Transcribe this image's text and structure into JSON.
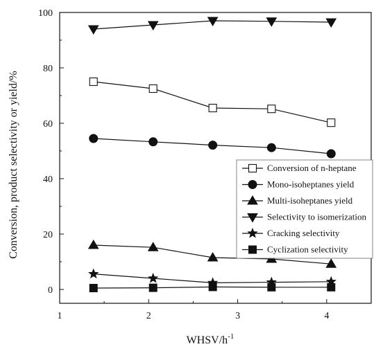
{
  "chart_data": {
    "type": "line",
    "xlabel": "WHSV/h",
    "xlabel_superscript": "-1",
    "ylabel": "Conversion, product selectivity or yield/%",
    "xlim": [
      1,
      4.5
    ],
    "ylim": [
      -5,
      100
    ],
    "x_ticks": [
      1,
      2,
      3,
      4
    ],
    "x_tick_labels": [
      "1",
      "2",
      "3",
      "4"
    ],
    "y_ticks": [
      0,
      20,
      40,
      60,
      80,
      100
    ],
    "y_tick_labels": [
      "0",
      "20",
      "40",
      "60",
      "80",
      "100"
    ],
    "grid": false,
    "legend_position": "right-middle",
    "x": [
      1.38,
      2.05,
      2.72,
      3.38,
      4.05
    ],
    "series": [
      {
        "name": "Conversion of n-heptane",
        "marker": "square-open",
        "values": [
          75.0,
          72.5,
          65.5,
          65.2,
          60.2
        ]
      },
      {
        "name": "Mono-isoheptanes yield",
        "marker": "circle-filled",
        "values": [
          54.5,
          53.3,
          52.1,
          51.2,
          49.0
        ]
      },
      {
        "name": "Multi-isoheptanes yield",
        "marker": "triangle-up-filled",
        "values": [
          16.0,
          15.2,
          11.5,
          11.0,
          9.2
        ]
      },
      {
        "name": "Selectivity to isomerization",
        "marker": "triangle-down-filled",
        "values": [
          94.0,
          95.5,
          97.0,
          96.8,
          96.5
        ]
      },
      {
        "name": "Cracking selectivity",
        "marker": "star-filled",
        "values": [
          5.6,
          4.0,
          2.4,
          2.6,
          2.8
        ]
      },
      {
        "name": "Cyclization selectivity",
        "marker": "square-filled",
        "values": [
          0.5,
          0.6,
          0.9,
          0.8,
          0.8
        ]
      }
    ]
  }
}
